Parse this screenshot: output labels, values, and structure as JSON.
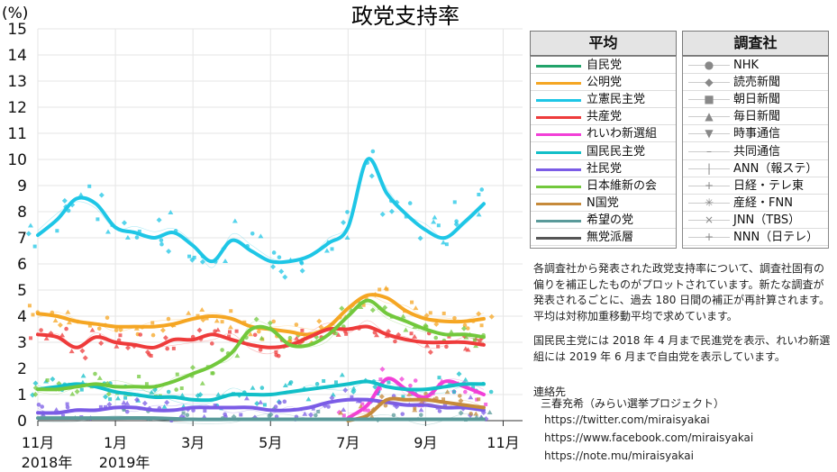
{
  "chart_data": {
    "type": "line",
    "title": "政党支持率",
    "ylabel": "(%)",
    "ylim": [
      0,
      15
    ],
    "yticks": [
      0,
      1,
      2,
      3,
      4,
      5,
      6,
      7,
      8,
      9,
      10,
      11,
      12,
      13,
      14,
      15
    ],
    "xlim": [
      0,
      12.5
    ],
    "xticks": [
      {
        "x": 0,
        "label": "11月",
        "sub": "2018年"
      },
      {
        "x": 2,
        "label": "1月",
        "sub": "2019年"
      },
      {
        "x": 4,
        "label": "3月",
        "sub": ""
      },
      {
        "x": 6,
        "label": "5月",
        "sub": ""
      },
      {
        "x": 8,
        "label": "7月",
        "sub": ""
      },
      {
        "x": 10,
        "label": "9月",
        "sub": ""
      },
      {
        "x": 12,
        "label": "11月",
        "sub": ""
      }
    ],
    "grid": true,
    "series": [
      {
        "name": "自民党",
        "color": "#22a36a",
        "x": [],
        "values": []
      },
      {
        "name": "公明党",
        "color": "#f5a623",
        "x": [
          0,
          0.5,
          1,
          1.5,
          2,
          2.5,
          3,
          3.5,
          4,
          4.5,
          5,
          5.5,
          6,
          6.5,
          7,
          7.5,
          8,
          8.5,
          9,
          9.5,
          10,
          10.5,
          11,
          11.5
        ],
        "values": [
          4.1,
          4.0,
          3.8,
          3.7,
          3.6,
          3.6,
          3.6,
          3.7,
          3.9,
          4.0,
          3.9,
          3.6,
          3.5,
          3.4,
          3.3,
          3.6,
          4.3,
          4.8,
          4.7,
          4.2,
          3.9,
          3.8,
          3.8,
          3.9
        ]
      },
      {
        "name": "立憲民主党",
        "color": "#1ec6e6",
        "x": [
          0,
          0.5,
          1,
          1.5,
          2,
          2.5,
          3,
          3.5,
          4,
          4.5,
          5,
          5.5,
          6,
          6.5,
          7,
          7.5,
          8,
          8.5,
          9,
          9.5,
          10,
          10.5,
          11,
          11.5
        ],
        "values": [
          7.1,
          7.7,
          8.5,
          8.3,
          7.4,
          7.2,
          7.0,
          7.2,
          6.7,
          6.1,
          6.9,
          6.5,
          6.1,
          6.1,
          6.3,
          6.8,
          7.4,
          10.0,
          8.7,
          7.9,
          7.3,
          7.0,
          7.6,
          8.3
        ]
      },
      {
        "name": "共産党",
        "color": "#ee3b3b",
        "x": [
          0,
          0.5,
          1,
          1.5,
          2,
          2.5,
          3,
          3.5,
          4,
          4.5,
          5,
          5.5,
          6,
          6.5,
          7,
          7.5,
          8,
          8.5,
          9,
          9.5,
          10,
          10.5,
          11,
          11.5
        ],
        "values": [
          3.3,
          3.2,
          2.8,
          3.2,
          3.0,
          2.9,
          2.8,
          3.1,
          3.1,
          3.3,
          3.1,
          2.9,
          2.8,
          2.9,
          3.2,
          3.5,
          3.5,
          3.6,
          3.3,
          3.1,
          3.0,
          3.0,
          3.0,
          2.9
        ]
      },
      {
        "name": "れいわ新選組",
        "color": "#f23fd7",
        "x": [
          8,
          8.5,
          9,
          9.5,
          10,
          10.5,
          11,
          11.5
        ],
        "values": [
          0.1,
          0.6,
          1.6,
          1.2,
          0.9,
          1.5,
          1.3,
          1.0
        ]
      },
      {
        "name": "国民民主党",
        "color": "#12bfc8",
        "x": [
          0,
          0.5,
          1,
          1.5,
          2,
          2.5,
          3,
          3.5,
          4,
          4.5,
          5,
          5.5,
          6,
          6.5,
          7,
          7.5,
          8,
          8.5,
          9,
          9.5,
          10,
          10.5,
          11,
          11.5
        ],
        "values": [
          1.2,
          1.3,
          1.4,
          1.3,
          1.1,
          1.0,
          0.9,
          0.9,
          0.8,
          0.8,
          1.0,
          1.0,
          1.0,
          1.1,
          1.2,
          1.3,
          1.4,
          1.5,
          1.3,
          1.2,
          1.2,
          1.3,
          1.4,
          1.4
        ]
      },
      {
        "name": "社民党",
        "color": "#7b5ce6",
        "x": [
          0,
          0.5,
          1,
          1.5,
          2,
          2.5,
          3,
          3.5,
          4,
          4.5,
          5,
          5.5,
          6,
          6.5,
          7,
          7.5,
          8,
          8.5,
          9,
          9.5,
          10,
          10.5,
          11,
          11.5
        ],
        "values": [
          0.3,
          0.3,
          0.4,
          0.4,
          0.5,
          0.5,
          0.4,
          0.4,
          0.5,
          0.5,
          0.5,
          0.5,
          0.4,
          0.4,
          0.5,
          0.7,
          0.8,
          0.8,
          0.7,
          0.6,
          0.6,
          0.5,
          0.5,
          0.4
        ]
      },
      {
        "name": "日本維新の会",
        "color": "#72c83c",
        "x": [
          0,
          0.5,
          1,
          1.5,
          2,
          2.5,
          3,
          3.5,
          4,
          4.5,
          5,
          5.5,
          6,
          6.5,
          7,
          7.5,
          8,
          8.5,
          9,
          9.5,
          10,
          10.5,
          11,
          11.5
        ],
        "values": [
          1.2,
          1.2,
          1.3,
          1.4,
          1.3,
          1.3,
          1.3,
          1.5,
          1.8,
          2.1,
          2.6,
          3.5,
          3.5,
          2.9,
          2.9,
          3.3,
          4.0,
          4.6,
          4.1,
          3.8,
          3.5,
          3.3,
          3.3,
          3.2
        ]
      },
      {
        "name": "N国党",
        "color": "#c68a3a",
        "x": [
          8,
          8.5,
          9,
          9.5,
          10,
          10.5,
          11,
          11.5
        ],
        "values": [
          0.0,
          0.2,
          0.8,
          0.8,
          0.8,
          0.7,
          0.6,
          0.5
        ]
      },
      {
        "name": "希望の党",
        "color": "#5a9a9a",
        "x": [
          0,
          1,
          2,
          3,
          4,
          5,
          6,
          7,
          8,
          9,
          10,
          11,
          11.5
        ],
        "values": [
          0.1,
          0.1,
          0.1,
          0.1,
          0.05,
          0.05,
          0.05,
          0.05,
          0.05,
          0.05,
          0.05,
          0.05,
          0.05
        ]
      },
      {
        "name": "無党派層",
        "color": "#555555",
        "x": [],
        "values": []
      }
    ]
  },
  "legend": {
    "header": "平均",
    "items": [
      {
        "label": "自民党",
        "color": "#22a36a"
      },
      {
        "label": "公明党",
        "color": "#f5a623"
      },
      {
        "label": "立憲民主党",
        "color": "#1ec6e6"
      },
      {
        "label": "共産党",
        "color": "#ee3b3b"
      },
      {
        "label": "れいわ新選組",
        "color": "#f23fd7"
      },
      {
        "label": "国民民主党",
        "color": "#12bfc8"
      },
      {
        "label": "社民党",
        "color": "#7b5ce6"
      },
      {
        "label": "日本維新の会",
        "color": "#72c83c"
      },
      {
        "label": "N国党",
        "color": "#c68a3a"
      },
      {
        "label": "希望の党",
        "color": "#5a9a9a"
      },
      {
        "label": "無党派層",
        "color": "#555555"
      }
    ]
  },
  "sources": {
    "header": "調査社",
    "items": [
      {
        "label": "NHK",
        "marker": "●"
      },
      {
        "label": "読売新聞",
        "marker": "◆"
      },
      {
        "label": "朝日新聞",
        "marker": "■"
      },
      {
        "label": "毎日新聞",
        "marker": "▲"
      },
      {
        "label": "時事通信",
        "marker": "▼"
      },
      {
        "label": "共同通信",
        "marker": "–"
      },
      {
        "label": "ANN（報ステ）",
        "marker": "|"
      },
      {
        "label": "日経・テレ東",
        "marker": "+"
      },
      {
        "label": "産経・FNN",
        "marker": "✳"
      },
      {
        "label": "JNN（TBS）",
        "marker": "×"
      },
      {
        "label": "NNN（日テレ）",
        "marker": "+"
      }
    ]
  },
  "notes": {
    "paragraph1": "各調査社から発表された政党支持率について、調査社固有の偏りを補正したものがプロットされています。新たな調査が発表されるごとに、過去 180 日間の補正が再計算されます。平均は対称加重移動平均で求めています。",
    "paragraph2": "国民民主党には 2018 年 4 月まで民進党を表示、れいわ新選組には 2019 年 6 月まで自由党を表示しています。",
    "contact_label": "連絡先",
    "contact_name": "三春充希（みらい選挙プロジェクト）",
    "links": [
      "https://twitter.com/miraisyakai",
      "https://www.facebook.com/miraisyakai",
      "https://note.mu/miraisyakai"
    ]
  }
}
